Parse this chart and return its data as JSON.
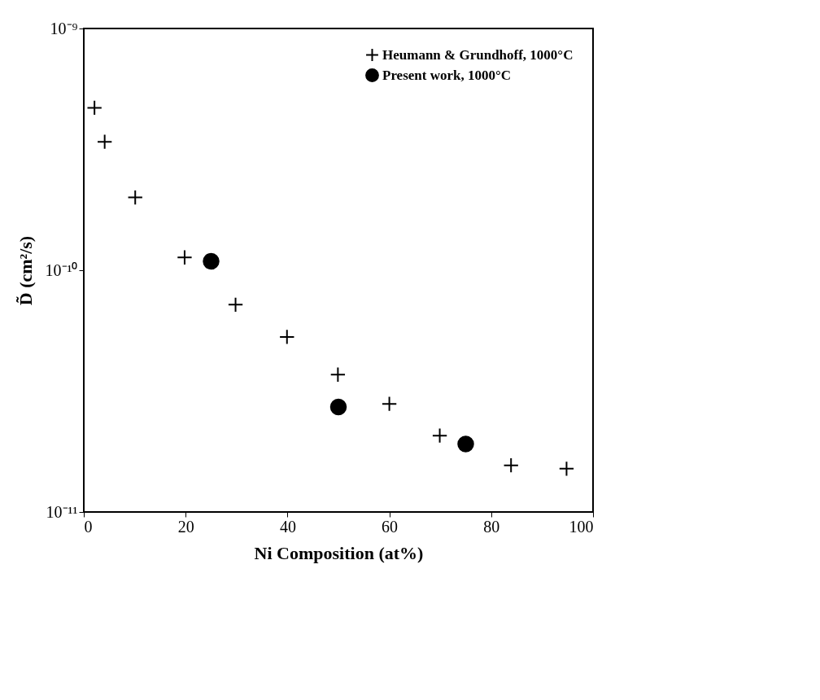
{
  "chart_data": {
    "type": "scatter",
    "xlabel": "Ni  Composition (at%)",
    "ylabel": "D̃ (cm²/s)",
    "xlim": [
      0,
      100
    ],
    "xticks": [
      0,
      20,
      40,
      60,
      80,
      100
    ],
    "ylim": [
      1e-11,
      1e-09
    ],
    "yticks": [
      {
        "value": 1e-11,
        "label": "10⁻¹¹"
      },
      {
        "value": 1e-10,
        "label": "10⁻¹⁰"
      },
      {
        "value": 1e-09,
        "label": "10⁻⁹"
      }
    ],
    "log": "y",
    "grid": false,
    "legend": "top right",
    "series": [
      {
        "name": "Heumann & Grundhoff, 1000°C",
        "color": "#000000",
        "marker": "cross",
        "x": [
          2.1,
          4.1,
          10.1,
          19.8,
          29.8,
          39.9,
          49.9,
          60.0,
          69.9,
          83.9,
          94.8
        ],
        "values": [
          4.7e-10,
          3.4e-10,
          2e-10,
          1.13e-10,
          7.2e-11,
          5.3e-11,
          3.7e-11,
          2.8e-11,
          2.07e-11,
          1.56e-11,
          1.51e-11
        ]
      },
      {
        "name": "Present work, 1000°C",
        "color": "#000000",
        "marker": "circle",
        "x": [
          25,
          50,
          75
        ],
        "values": [
          1.09e-10,
          2.72e-11,
          1.91e-11
        ]
      }
    ]
  }
}
